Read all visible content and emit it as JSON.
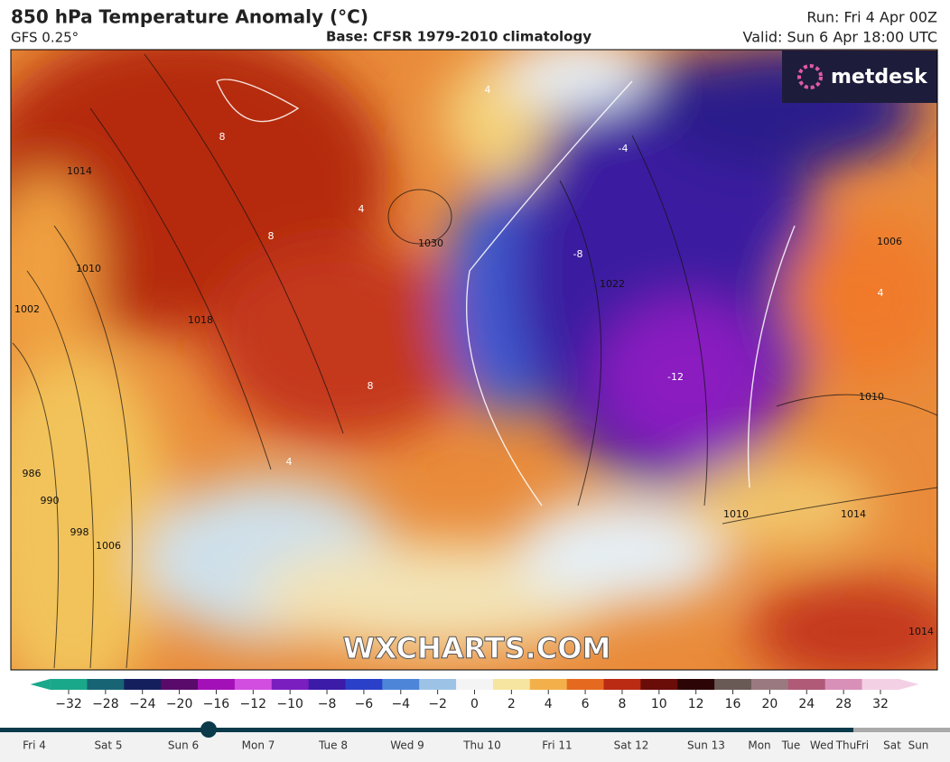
{
  "header": {
    "title": "850 hPa Temperature Anomaly (°C)",
    "model": "GFS 0.25°",
    "base": "Base: CFSR 1979-2010 climatology",
    "run": "Run: Fri 4 Apr 00Z",
    "valid": "Valid: Sun 6 Apr 18:00 UTC"
  },
  "logo": "metdesk",
  "watermark": "WXCHARTS.COM",
  "map_labels": [
    "1030",
    "1018",
    "1010",
    "1002",
    "1014",
    "1006",
    "998",
    "990",
    "986",
    "1022",
    "1010",
    "1006",
    "1010",
    "1014",
    "1014",
    "-8",
    "-12",
    "-4",
    "8",
    "8",
    "8",
    "4",
    "4",
    "4",
    "4"
  ],
  "colorbar": {
    "ticks": [
      {
        "value": -32,
        "label": "−32"
      },
      {
        "value": -28,
        "label": "−28"
      },
      {
        "value": -24,
        "label": "−24"
      },
      {
        "value": -20,
        "label": "−20"
      },
      {
        "value": -16,
        "label": "−16"
      },
      {
        "value": -12,
        "label": "−12"
      },
      {
        "value": -10,
        "label": "−10"
      },
      {
        "value": -8,
        "label": "−8"
      },
      {
        "value": -6,
        "label": "−6"
      },
      {
        "value": -4,
        "label": "−4"
      },
      {
        "value": -2,
        "label": "−2"
      },
      0,
      2,
      4,
      6,
      8,
      10,
      12,
      16,
      20,
      24,
      28,
      32
    ]
  },
  "timeline": [
    "Fri 4",
    "Sat 5",
    "Sun 6",
    "Mon 7",
    "Tue 8",
    "Wed 9",
    "Thu 10",
    "Fri 11",
    "Sat 12",
    "Sun 13",
    "Mon",
    "Tue",
    "Wed",
    "Thu",
    "Fri",
    "Sat",
    "Sun"
  ]
}
